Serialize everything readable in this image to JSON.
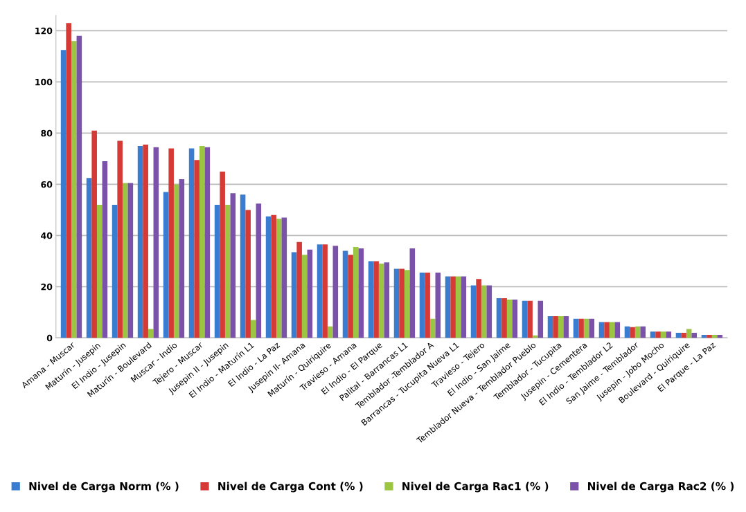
{
  "chart_data": {
    "type": "bar",
    "categories": [
      "Amana - Muscar",
      "Maturín - Jusepin",
      "El Indio - Jusepin",
      "Maturín - Boulevard",
      "Muscar - Indio",
      "Tejero - Muscar",
      "Jusepin II - Jusepin",
      "El Indio - Maturín L1",
      "El Indio - La Paz",
      "Jusepin II- Amana",
      "Maturín - Quiriquire",
      "Travieso - Amana",
      "El Indio - El Parque",
      "Palital - Barrancas L1",
      "Temblador -Temblador A",
      "Barrancas - Tucupita Nueva L1",
      "Travieso - Tejero",
      "El Indio - San Jaime",
      "Temblador Nueva - Temblador Pueblo",
      "Temblador - Tucupita",
      "Jusepin - Cementera",
      "El Indio - Temblador L2",
      "San Jaime - Temblador",
      "Jusepin - Jobo Mocho",
      "Boulevard - Quiriquire",
      "El Parque - La Paz"
    ],
    "series": [
      {
        "name": "Nivel de Carga Norm (% )",
        "color": "#3a7dd0",
        "values": [
          112.5,
          62.5,
          52,
          75,
          57,
          74,
          52,
          56,
          47.5,
          33.5,
          36.5,
          34,
          30,
          27,
          25.5,
          24,
          20.5,
          15.5,
          14.5,
          8.5,
          7.5,
          6.2,
          4.5,
          2.5,
          2,
          1.2
        ]
      },
      {
        "name": "Nivel de Carga Cont (% )",
        "color": "#d63a36",
        "values": [
          123,
          81,
          77,
          75.5,
          74,
          69.5,
          65,
          50,
          48,
          37.5,
          36.5,
          32.5,
          30,
          27,
          25.5,
          24,
          23,
          15.5,
          14.5,
          8.5,
          7.5,
          6.2,
          4.2,
          2.5,
          2,
          1.2
        ]
      },
      {
        "name": "Nivel de Carga Rac1 (% )",
        "color": "#9bc542",
        "values": [
          116,
          52,
          60.5,
          3.5,
          60,
          75,
          52,
          7,
          46.5,
          32.5,
          4.5,
          35.5,
          29,
          26.5,
          7.5,
          24,
          20.5,
          15,
          1,
          8.5,
          7.5,
          6.2,
          4.5,
          2.5,
          3.5,
          1.2
        ]
      },
      {
        "name": "Nivel de Carga Rac2 (% )",
        "color": "#7b52aa",
        "values": [
          118,
          69,
          60.5,
          74.5,
          62,
          74.5,
          56.5,
          52.5,
          47,
          34.5,
          36,
          35,
          29.5,
          35,
          25.5,
          24,
          20.5,
          15,
          14.5,
          8.5,
          7.5,
          6.2,
          4.5,
          2.5,
          2,
          1.2
        ]
      }
    ],
    "ylim": [
      0,
      126
    ],
    "yticks": [
      0,
      20,
      40,
      60,
      80,
      100,
      120
    ],
    "grid": "y",
    "legend": "bottom"
  }
}
